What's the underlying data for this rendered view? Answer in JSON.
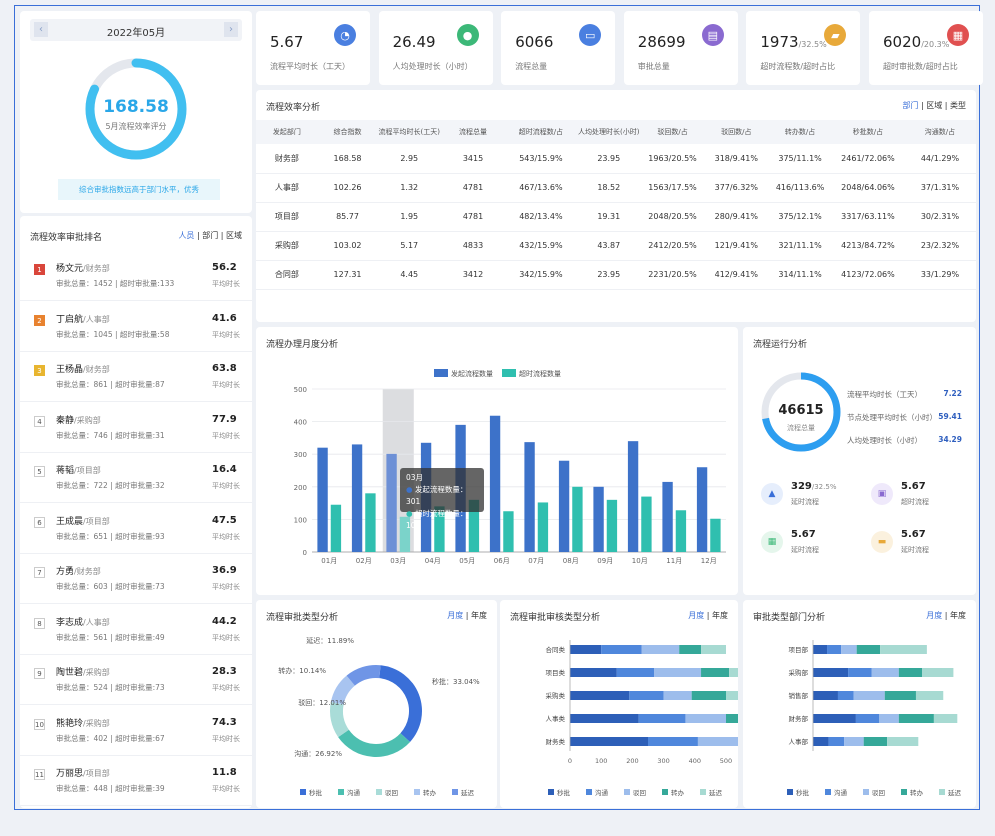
{
  "month": {
    "label": "2022年05月",
    "prev": "‹",
    "next": "›"
  },
  "score": {
    "value": "168.58",
    "label": "5月流程效率评分",
    "note": "综合审批指数远高于部门水平，优秀",
    "ratio": 0.82
  },
  "ranking": {
    "title": "流程效率审批排名",
    "filters": [
      "人员",
      "部门",
      "区域"
    ],
    "avg_label": "平均时长",
    "items": [
      {
        "no": "1",
        "name": "杨文元",
        "dept": "/财务部",
        "total": "审批总量：1452",
        "over": "超时审批量:133",
        "score": "56.2"
      },
      {
        "no": "2",
        "name": "丁启航",
        "dept": "/人事部",
        "total": "审批总量：1045",
        "over": "超时审批量:58",
        "score": "41.6"
      },
      {
        "no": "3",
        "name": "王杨晶",
        "dept": "/财务部",
        "total": "审批总量：861",
        "over": "超时审批量:87",
        "score": "63.8"
      },
      {
        "no": "4",
        "name": "秦静",
        "dept": "/采购部",
        "total": "审批总量：746",
        "over": "超时审批量:31",
        "score": "77.9"
      },
      {
        "no": "5",
        "name": "蒋韬",
        "dept": "/项目部",
        "total": "审批总量：722",
        "over": "超时审批量:32",
        "score": "16.4"
      },
      {
        "no": "6",
        "name": "王成晨",
        "dept": "/项目部",
        "total": "审批总量：651",
        "over": "超时审批量:93",
        "score": "47.5"
      },
      {
        "no": "7",
        "name": "方勇",
        "dept": "/财务部",
        "total": "审批总量：603",
        "over": "超时审批量:73",
        "score": "36.9"
      },
      {
        "no": "8",
        "name": "李志成",
        "dept": "/人事部",
        "total": "审批总量：561",
        "over": "超时审批量:49",
        "score": "44.2"
      },
      {
        "no": "9",
        "name": "陶世碧",
        "dept": "/采购部",
        "total": "审批总量：524",
        "over": "超时审批量:73",
        "score": "28.3"
      },
      {
        "no": "10",
        "name": "熊艳玲",
        "dept": "/采购部",
        "total": "审批总量：402",
        "over": "超时审批量:67",
        "score": "74.3"
      },
      {
        "no": "11",
        "name": "万丽思",
        "dept": "/项目部",
        "total": "审批总量：448",
        "over": "超时审批量:39",
        "score": "11.8"
      }
    ]
  },
  "kpis": [
    {
      "value": "5.67",
      "sub": "",
      "label": "流程平均时长（工天）",
      "icon": "clock-icon",
      "glyph": "◔",
      "color": "#4a7fe0"
    },
    {
      "value": "26.49",
      "sub": "",
      "label": "人均处理时长（小时）",
      "icon": "user-icon",
      "glyph": "●",
      "color": "#3cb878"
    },
    {
      "value": "6066",
      "sub": "",
      "label": "流程总量",
      "icon": "monitor-icon",
      "glyph": "▭",
      "color": "#4a7fe0"
    },
    {
      "value": "28699",
      "sub": "",
      "label": "审批总量",
      "icon": "inbox-icon",
      "glyph": "▤",
      "color": "#8a6ad0"
    },
    {
      "value": "1973",
      "sub": "/32.5%",
      "label": "超时流程数/超时占比",
      "icon": "truck-icon",
      "glyph": "▰",
      "color": "#e8a93a"
    },
    {
      "value": "6020",
      "sub": "/20.3%",
      "label": "超时审批数/超时占比",
      "icon": "doc-icon",
      "glyph": "▦",
      "color": "#e05050"
    }
  ],
  "efficiency": {
    "title": "流程效率分析",
    "filters": [
      "部门",
      "区域",
      "类型"
    ],
    "headers": [
      "发起部门",
      "综合指数",
      "流程平均时长(工天)",
      "流程总量",
      "超时流程数/占",
      "人均处理时长(小时)",
      "驳回数/占",
      "驳回数/占",
      "转办数/占",
      "秒批数/占",
      "沟通数/占"
    ],
    "rows": [
      [
        "财务部",
        "168.58",
        "2.95",
        "3415",
        "543/15.9%",
        "23.95",
        "1963/20.5%",
        "318/9.41%",
        "375/11.1%",
        "2461/72.06%",
        "44/1.29%"
      ],
      [
        "人事部",
        "102.26",
        "1.32",
        "4781",
        "467/13.6%",
        "18.52",
        "1563/17.5%",
        "377/6.32%",
        "416/113.6%",
        "2048/64.06%",
        "37/1.31%"
      ],
      [
        "项目部",
        "85.77",
        "1.95",
        "4781",
        "482/13.4%",
        "19.31",
        "2048/20.5%",
        "280/9.41%",
        "375/12.1%",
        "3317/63.11%",
        "30/2.31%"
      ],
      [
        "采购部",
        "103.02",
        "5.17",
        "4833",
        "432/15.9%",
        "43.87",
        "2412/20.5%",
        "121/9.41%",
        "321/11.1%",
        "4213/84.72%",
        "23/2.32%"
      ],
      [
        "合同部",
        "127.31",
        "4.45",
        "3412",
        "342/15.9%",
        "23.95",
        "2231/20.5%",
        "412/9.41%",
        "314/11.1%",
        "4123/72.06%",
        "33/1.29%"
      ]
    ]
  },
  "monthly": {
    "title": "流程办理月度分析",
    "tooltip": {
      "title": "03月",
      "line1": "发起流程数量：301",
      "line2": "超时流程数量：108"
    }
  },
  "operation": {
    "title": "流程运行分析",
    "total": "46615",
    "total_label": "流程总量",
    "ratio": 0.72,
    "stats": [
      {
        "label": "流程平均时长（工天）",
        "value": "7.22"
      },
      {
        "label": "节点处理平均时长（小时）",
        "value": "59.41"
      },
      {
        "label": "人均处理时长（小时）",
        "value": "34.29"
      }
    ],
    "tiles": [
      {
        "value": "329",
        "sub": "/32.5%",
        "label": "延时流程",
        "icon": "warning-icon",
        "glyph": "▲",
        "color": "#3a6fd8",
        "bg": "#e6eefc"
      },
      {
        "value": "5.67",
        "sub": "",
        "label": "超时流程",
        "icon": "doc-icon",
        "glyph": "▣",
        "color": "#8a6ad0",
        "bg": "#efe9fb"
      },
      {
        "value": "5.67",
        "sub": "",
        "label": "延时流程",
        "icon": "sheet-icon",
        "glyph": "▦",
        "color": "#3cb878",
        "bg": "#e5f6ec"
      },
      {
        "value": "5.67",
        "sub": "",
        "label": "延时流程",
        "icon": "chat-icon",
        "glyph": "▬",
        "color": "#e8a93a",
        "bg": "#fbf1de"
      }
    ]
  },
  "approval_type": {
    "title": "流程审批类型分析",
    "filters": [
      "月度",
      "年度"
    ]
  },
  "process_type": {
    "title": "流程审批审核类型分析",
    "filters": [
      "月度",
      "年度"
    ]
  },
  "dept_type": {
    "title": "审批类型部门分析",
    "filters": [
      "月度",
      "年度"
    ]
  },
  "chart_data": [
    {
      "type": "bar",
      "name": "monthly",
      "categories": [
        "01月",
        "02月",
        "03月",
        "04月",
        "05月",
        "06月",
        "07月",
        "08月",
        "09月",
        "10月",
        "11月",
        "12月"
      ],
      "series": [
        {
          "name": "发起流程数量",
          "color": "#3d72c9",
          "values": [
            320,
            330,
            301,
            335,
            390,
            418,
            337,
            280,
            200,
            340,
            215,
            260
          ]
        },
        {
          "name": "超时流程数量",
          "color": "#2fbfaf",
          "values": [
            145,
            180,
            108,
            140,
            160,
            125,
            152,
            200,
            160,
            170,
            128,
            102
          ]
        }
      ],
      "ylim": [
        0,
        500
      ],
      "yticks": [
        0,
        100,
        200,
        300,
        400,
        500
      ],
      "highlight": 2
    },
    {
      "type": "pie",
      "name": "approval_type",
      "labels": [
        "秒批",
        "沟通",
        "驳回",
        "转办",
        "延迟"
      ],
      "values": [
        33.04,
        26.92,
        12.01,
        10.14,
        11.89
      ],
      "display": [
        "秒批：33.04%",
        "沟通：26.92%",
        "驳回：12.01%",
        "转办：10.14%",
        "延迟：11.89%"
      ],
      "colors": [
        "#3a6fd8",
        "#4cbfb0",
        "#a9dcd8",
        "#a8c4f0",
        "#6f95e6"
      ]
    },
    {
      "type": "bar",
      "name": "process_type",
      "orientation": "horizontal",
      "stacked": true,
      "categories": [
        "合同类",
        "项目类",
        "采购类",
        "人事类",
        "财务类"
      ],
      "legend": [
        "秒批",
        "沟通",
        "驳回",
        "转办",
        "延迟"
      ],
      "colors": [
        "#2d5fb8",
        "#4f87dc",
        "#9dbdec",
        "#35a899",
        "#a7dad2"
      ],
      "values": [
        [
          100,
          150,
          190,
          220,
          250
        ],
        [
          130,
          120,
          110,
          150,
          160
        ],
        [
          120,
          150,
          90,
          130,
          140
        ],
        [
          70,
          90,
          110,
          100,
          80
        ],
        [
          80,
          90,
          50,
          30,
          80
        ]
      ],
      "xlim": [
        0,
        500
      ],
      "xticks": [
        0,
        100,
        200,
        300,
        400,
        500
      ]
    },
    {
      "type": "bar",
      "name": "dept_type",
      "orientation": "horizontal",
      "stacked": true,
      "categories": [
        "项目部",
        "采购部",
        "销售部",
        "财务部",
        "人事部"
      ],
      "legend": [
        "秒批",
        "沟通",
        "驳回",
        "转办",
        "延迟"
      ],
      "colors": [
        "#2d5fb8",
        "#4f87dc",
        "#9dbdec",
        "#35a899",
        "#a7dad2"
      ],
      "values": [
        [
          18,
          45,
          32,
          55,
          20
        ],
        [
          18,
          30,
          20,
          30,
          20
        ],
        [
          20,
          35,
          40,
          25,
          25
        ],
        [
          30,
          30,
          40,
          45,
          30
        ],
        [
          60,
          40,
          35,
          30,
          40
        ]
      ],
      "xlim": [
        0,
        200
      ]
    }
  ]
}
